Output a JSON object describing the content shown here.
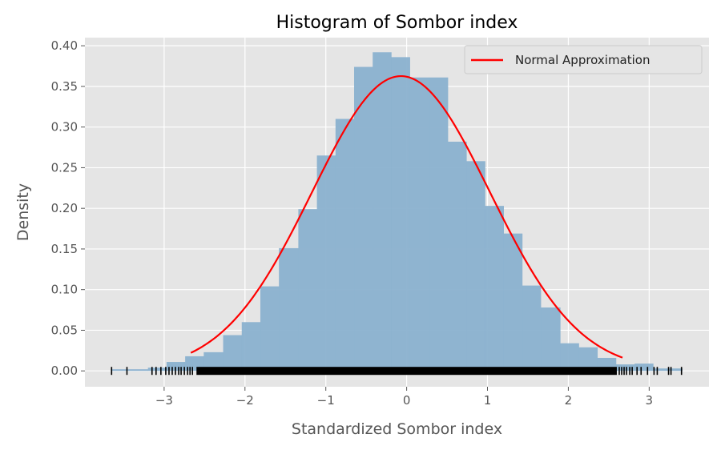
{
  "chart_data": {
    "type": "bar",
    "title": "Histogram of Sombor index",
    "xlabel": "Standardized Sombor index",
    "ylabel": "Density",
    "xlim": [
      -3.98,
      3.74
    ],
    "ylim": [
      -0.0195,
      0.41
    ],
    "grid": true,
    "legend_placement": "top-right",
    "xticks": [
      -3,
      -2,
      -1,
      0,
      1,
      2,
      3
    ],
    "xtick_labels": [
      "−3",
      "−2",
      "−1",
      "0",
      "1",
      "2",
      "3"
    ],
    "yticks": [
      0.0,
      0.05,
      0.1,
      0.15,
      0.2,
      0.25,
      0.3,
      0.35,
      0.4
    ],
    "ytick_labels": [
      "0.00",
      "0.05",
      "0.10",
      "0.15",
      "0.20",
      "0.25",
      "0.30",
      "0.35",
      "0.40"
    ],
    "histogram": {
      "color": "#8ab1cf",
      "bin_edges": [
        -3.66,
        -3.43,
        -3.2,
        -2.97,
        -2.74,
        -2.51,
        -2.27,
        -2.04,
        -1.81,
        -1.58,
        -1.34,
        -1.11,
        -0.88,
        -0.65,
        -0.42,
        -0.19,
        0.04,
        0.28,
        0.51,
        0.74,
        0.97,
        1.2,
        1.43,
        1.66,
        1.9,
        2.13,
        2.36,
        2.59,
        2.82,
        3.05,
        3.28,
        3.41
      ],
      "density": [
        0.002,
        0.002,
        0.004,
        0.011,
        0.018,
        0.023,
        0.044,
        0.06,
        0.104,
        0.151,
        0.199,
        0.265,
        0.31,
        0.374,
        0.392,
        0.386,
        0.361,
        0.361,
        0.282,
        0.258,
        0.203,
        0.169,
        0.105,
        0.078,
        0.034,
        0.029,
        0.016,
        0.008,
        0.009,
        0.003,
        0.003
      ]
    },
    "series": [
      {
        "name": "Normal Approximation",
        "type": "line",
        "color": "#ff0000",
        "mean": -0.07,
        "std": 1.1,
        "x_range": [
          -2.67,
          2.67
        ]
      }
    ],
    "rug": {
      "color": "#000000",
      "y": 0.0,
      "dense_range": [
        -2.6,
        2.6
      ],
      "values": [
        -3.65,
        -3.46,
        -3.15,
        -3.1,
        -3.04,
        -2.98,
        -2.94,
        -2.9,
        -2.86,
        -2.82,
        -2.79,
        -2.75,
        -2.71,
        -2.68,
        -2.65,
        2.63,
        2.66,
        2.69,
        2.72,
        2.76,
        2.79,
        2.85,
        2.9,
        2.98,
        3.06,
        3.1,
        3.24,
        3.27,
        3.4
      ]
    }
  }
}
